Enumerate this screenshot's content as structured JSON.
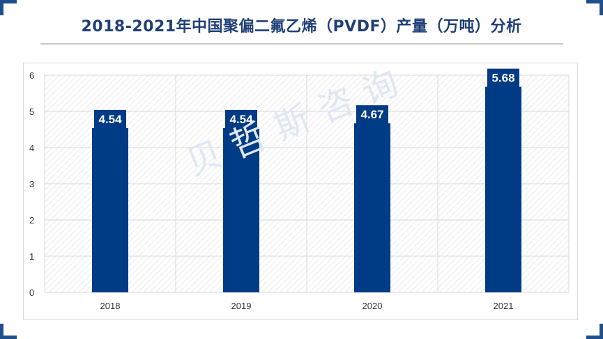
{
  "title": "2018-2021年中国聚偏二氟乙烯（PVDF）产量（万吨）分析",
  "watermark": "贝哲斯咨询",
  "colors": {
    "bar": "#003b85",
    "accent": "#1f4e8c",
    "grid": "#d9d9d9",
    "hatch": "#e3e3e3"
  },
  "chart_data": {
    "type": "bar",
    "title": "2018-2021年中国聚偏二氟乙烯（PVDF）产量（万吨）分析",
    "categories": [
      "2018",
      "2019",
      "2020",
      "2021"
    ],
    "values": [
      4.54,
      4.54,
      4.67,
      5.68
    ],
    "data_labels": [
      "4.54",
      "4.54",
      "4.67",
      "5.68"
    ],
    "xlabel": "",
    "ylabel": "",
    "ylim": [
      0,
      6
    ],
    "yticks": [
      "0",
      "1",
      "2",
      "3",
      "4",
      "5",
      "6"
    ],
    "grid": true,
    "legend": "none"
  }
}
